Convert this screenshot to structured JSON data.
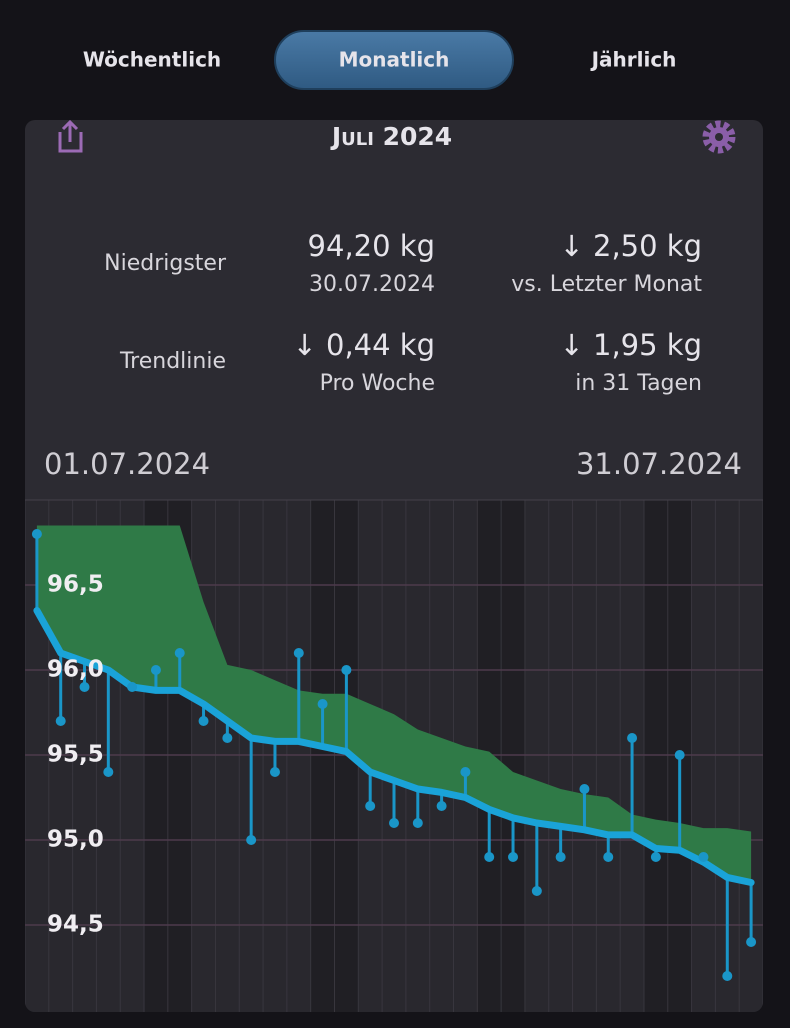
{
  "tabs": [
    "Wöchentlich",
    "Monatlich",
    "Jährlich"
  ],
  "active_tab": 1,
  "header": {
    "title": "Juli 2024"
  },
  "stats": {
    "lowest": {
      "label": "Niedrigster",
      "value": "94,20 kg",
      "date": "30.07.2024",
      "change": "↓ 2,50 kg",
      "change_note": "vs. Letzter Monat"
    },
    "trend": {
      "label": "Trendlinie",
      "value": "↓ 0,44 kg",
      "value_note": "Pro Woche",
      "change": "↓ 1,95 kg",
      "change_note": "in 31 Tagen"
    }
  },
  "range": {
    "start": "01.07.2024",
    "end": "31.07.2024"
  },
  "chart_data": {
    "type": "line",
    "ylim": [
      94,
      97
    ],
    "yticks": [
      {
        "value": 94.5,
        "label": "94,5"
      },
      {
        "value": 95,
        "label": "95,0"
      },
      {
        "value": 95.5,
        "label": "95,5"
      },
      {
        "value": 96,
        "label": "96,0"
      },
      {
        "value": 96.5,
        "label": "96,5"
      }
    ],
    "grid": true,
    "series": [
      {
        "color": "#1a96c8",
        "values": [
          96.8,
          95.7,
          95.9,
          95.4,
          95.9,
          96.0,
          96.1,
          95.7,
          95.6,
          95.0,
          95.4,
          96.1,
          95.8,
          96.0,
          95.2,
          95.1,
          95.1,
          95.2,
          95.4,
          94.9,
          94.9,
          94.7,
          94.9,
          95.3,
          94.9,
          95.6,
          94.9,
          95.5,
          94.9,
          94.2,
          94.4
        ]
      },
      {
        "color": "#1aa3d8",
        "values": [
          96.35,
          96.1,
          96.05,
          96.0,
          95.9,
          95.88,
          95.88,
          95.8,
          95.7,
          95.6,
          95.58,
          95.58,
          95.55,
          95.52,
          95.4,
          95.35,
          95.3,
          95.28,
          95.25,
          95.18,
          95.13,
          95.1,
          95.08,
          95.06,
          95.03,
          95.03,
          94.95,
          94.94,
          94.87,
          94.78,
          94.75
        ]
      },
      {
        "color": "#2f7a47",
        "values": [
          96.85,
          96.85,
          96.85,
          96.85,
          96.85,
          96.85,
          96.85,
          96.4,
          96.03,
          96.0,
          95.94,
          95.88,
          95.86,
          95.86,
          95.8,
          95.74,
          95.65,
          95.6,
          95.55,
          95.52,
          95.4,
          95.35,
          95.3,
          95.27,
          95.25,
          95.15,
          95.12,
          95.1,
          95.07,
          95.07,
          95.05
        ]
      }
    ]
  }
}
